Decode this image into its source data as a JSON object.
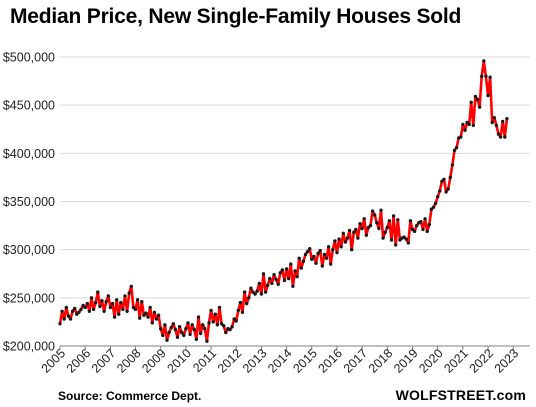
{
  "title": "Median Price, New Single-Family Houses Sold",
  "source": "Source: Commerce Dept.",
  "brand": "WOLFSTREET.com",
  "colors": {
    "line": "#ff0000",
    "markers": "#1a1a1a",
    "grid": "#d9d9d9",
    "axis": "#7f7f7f"
  },
  "chart_data": {
    "type": "line",
    "title": "Median Price, New Single-Family Houses Sold",
    "xlabel": "",
    "ylabel": "",
    "ylim": [
      200000,
      500000
    ],
    "yticks": [
      200000,
      250000,
      300000,
      350000,
      400000,
      450000,
      500000
    ],
    "ytick_labels": [
      "$200,000",
      "$250,000",
      "$300,000",
      "$350,000",
      "$400,000",
      "$450,000",
      "$500,000"
    ],
    "xticks": [
      "2005",
      "2006",
      "2007",
      "2008",
      "2009",
      "2010",
      "2011",
      "2012",
      "2013",
      "2014",
      "2015",
      "2016",
      "2017",
      "2018",
      "2019",
      "2020",
      "2021",
      "2022",
      "2023"
    ],
    "grid": "horizontal",
    "legend": "none",
    "x_start": "2005-01",
    "frequency": "monthly",
    "series": [
      {
        "values": [
          223000,
          236000,
          228000,
          240000,
          231000,
          228000,
          236000,
          239000,
          233000,
          235000,
          238000,
          242000,
          240000,
          244000,
          236000,
          250000,
          238000,
          245000,
          256000,
          241000,
          247000,
          236000,
          246000,
          252000,
          240000,
          244000,
          230000,
          248000,
          233000,
          245000,
          238000,
          252000,
          236000,
          255000,
          262000,
          240000,
          238000,
          248000,
          229000,
          246000,
          232000,
          234000,
          230000,
          240000,
          224000,
          235000,
          228000,
          232000,
          218000,
          211000,
          222000,
          206000,
          214000,
          219000,
          223000,
          217000,
          209000,
          220000,
          214000,
          211000,
          218000,
          224000,
          212000,
          222000,
          217000,
          207000,
          230000,
          213000,
          222000,
          218000,
          205000,
          224000,
          237000,
          225000,
          233000,
          222000,
          240000,
          223000,
          221000,
          214000,
          218000,
          217000,
          220000,
          228000,
          226000,
          237000,
          245000,
          235000,
          256000,
          244000,
          250000,
          260000,
          256000,
          254000,
          257000,
          265000,
          254000,
          275000,
          256000,
          263000,
          270000,
          265000,
          274000,
          269000,
          264000,
          276000,
          279000,
          268000,
          280000,
          270000,
          285000,
          262000,
          278000,
          272000,
          291000,
          281000,
          288000,
          295000,
          298000,
          301000,
          290000,
          293000,
          286000,
          296000,
          299000,
          283000,
          295000,
          291000,
          303000,
          285000,
          300000,
          309000,
          297000,
          311000,
          303000,
          317000,
          308000,
          312000,
          320000,
          300000,
          318000,
          321000,
          312000,
          327000,
          322000,
          332000,
          315000,
          323000,
          325000,
          340000,
          336000,
          328000,
          322000,
          341000,
          312000,
          318000,
          323000,
          330000,
          310000,
          335000,
          305000,
          331000,
          310000,
          312000,
          313000,
          311000,
          307000,
          330000,
          321000,
          319000,
          325000,
          328000,
          329000,
          321000,
          332000,
          319000,
          326000,
          342000,
          344000,
          348000,
          355000,
          361000,
          371000,
          373000,
          360000,
          363000,
          375000,
          388000,
          403000,
          406000,
          416000,
          417000,
          430000,
          424000,
          432000,
          430000,
          453000,
          429000,
          459000,
          456000,
          448000,
          480000,
          496000,
          480000,
          460000,
          479000,
          432000,
          437000,
          429000,
          420000,
          417000,
          433000,
          417000,
          436000
        ]
      }
    ]
  }
}
